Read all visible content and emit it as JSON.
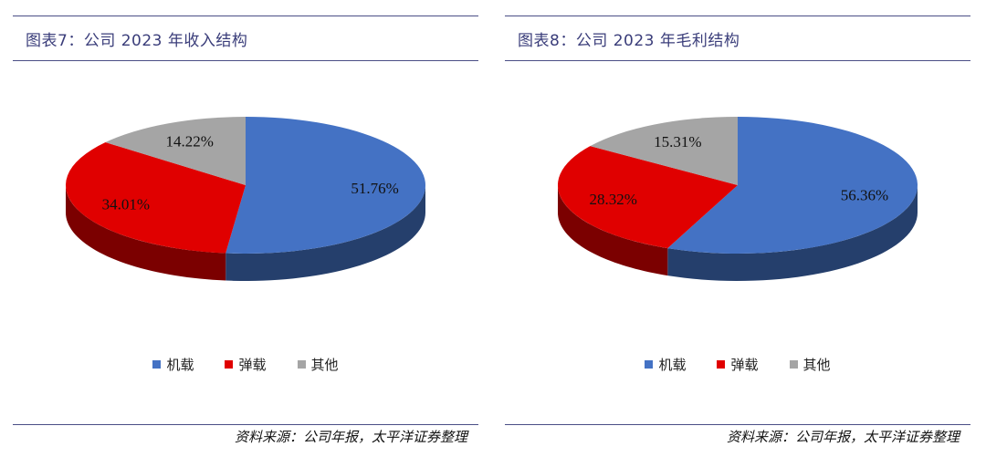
{
  "source_note": "资料来源：公司年报，太平洋证券整理",
  "legend": [
    {
      "label": "机载",
      "color": "#4472c4"
    },
    {
      "label": "弹载",
      "color": "#e00000"
    },
    {
      "label": "其他",
      "color": "#a5a5a5"
    }
  ],
  "chart_data": [
    {
      "type": "pie",
      "title": "图表7：公司 2023 年收入结构",
      "categories": [
        "机载",
        "弹载",
        "其他"
      ],
      "values": [
        51.76,
        34.01,
        14.22
      ],
      "labels": [
        "51.76%",
        "34.01%",
        "14.22%"
      ],
      "colors": [
        "#4472c4",
        "#e00000",
        "#a5a5a5"
      ],
      "legend_position": "bottom"
    },
    {
      "type": "pie",
      "title": "图表8：公司 2023 年毛利结构",
      "categories": [
        "机载",
        "弹载",
        "其他"
      ],
      "values": [
        56.36,
        28.32,
        15.31
      ],
      "labels": [
        "56.36%",
        "28.32%",
        "15.31%"
      ],
      "colors": [
        "#4472c4",
        "#e00000",
        "#a5a5a5"
      ],
      "legend_position": "bottom"
    }
  ]
}
